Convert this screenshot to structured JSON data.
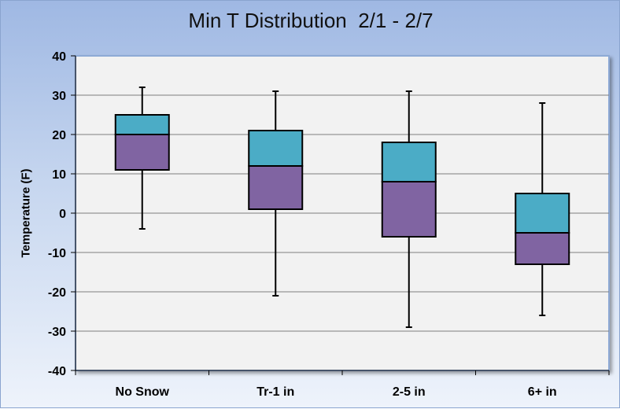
{
  "chart_data": {
    "type": "box",
    "title": "Min T Distribution  2/1 - 2/7",
    "xlabel": "",
    "ylabel": "Temperature (F)",
    "ylim": [
      -40,
      40
    ],
    "yticks": [
      40,
      30,
      20,
      10,
      0,
      -10,
      -20,
      -30,
      -40
    ],
    "grid": true,
    "categories": [
      "No Snow",
      "Tr-1 in",
      "2-5 in",
      "6+ in"
    ],
    "boxes": [
      {
        "min": -4,
        "q1": 11,
        "median": 20,
        "q3": 25,
        "max": 32
      },
      {
        "min": -21,
        "q1": 1,
        "median": 12,
        "q3": 21,
        "max": 31
      },
      {
        "min": -29,
        "q1": -6,
        "median": 8,
        "q3": 18,
        "max": 31
      },
      {
        "min": -26,
        "q1": -13,
        "median": -5,
        "q3": 5,
        "max": 28
      }
    ],
    "colors": {
      "upper_box": "#4bacc6",
      "lower_box": "#8064a2",
      "plot_bg": "#f2f2f2",
      "grid": "#7f7f7f"
    }
  }
}
